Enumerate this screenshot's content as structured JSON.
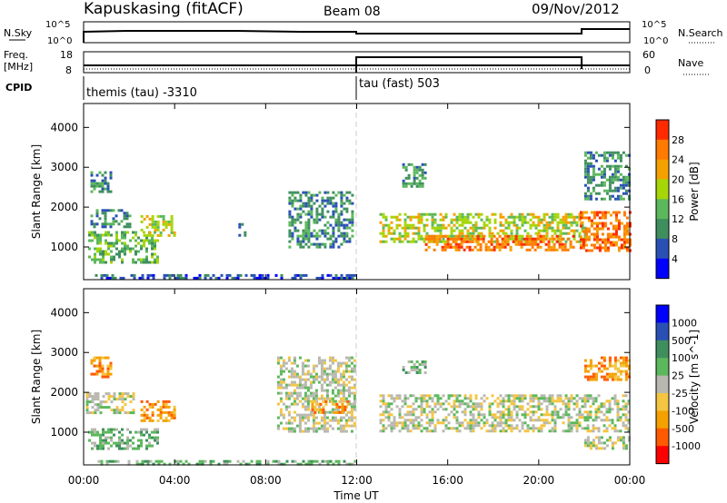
{
  "header": {
    "station": "Kapuskasing (fitACF)",
    "beam": "Beam 08",
    "date": "09/Nov/2012"
  },
  "strips": {
    "nsky_label": "N.Sky",
    "nsky_ticks": [
      "10^5",
      "10^0"
    ],
    "nsearch_label": "N.Search",
    "nsearch_ticks": [
      "10^5",
      "10^0"
    ],
    "freq_label_1": "Freq.",
    "freq_label_2": "[MHz]",
    "freq_ticks": [
      "18",
      "8"
    ],
    "nave_label": "Nave",
    "nave_ticks": [
      "60",
      "0"
    ],
    "cpid_label": "CPID",
    "cpid_segments": [
      "themis (tau) -3310",
      "tau (fast) 503"
    ],
    "cpid_change_time": "12:00"
  },
  "chart_data": [
    {
      "type": "heatmap",
      "title": "",
      "xlabel": "Time UT",
      "ylabel": "Slant Range [km]",
      "colorbar_label": "Power [dB]",
      "colorbar_ticks": [
        "28",
        "24",
        "20",
        "16",
        "12",
        "8",
        "4"
      ],
      "colors": [
        "#0000ff",
        "#2a50b5",
        "#3f8f5e",
        "#5cb85c",
        "#a6d608",
        "#f4a100",
        "#ff7a00",
        "#ff2a00"
      ],
      "x_ticks": [
        "00:00",
        "04:00",
        "08:00",
        "12:00",
        "16:00",
        "20:00",
        "00:00"
      ],
      "y_ticks": [
        "1000",
        "2000",
        "3000",
        "4000"
      ],
      "xlim": [
        0,
        24
      ],
      "ylim": [
        180,
        4600
      ],
      "regions": [
        {
          "t0": 0.2,
          "t1": 3.3,
          "r0": 600,
          "r1": 1400,
          "level": 3
        },
        {
          "t0": 0.3,
          "t1": 2.0,
          "r0": 1500,
          "r1": 1950,
          "level": 2
        },
        {
          "t0": 0.3,
          "t1": 1.2,
          "r0": 2400,
          "r1": 2900,
          "level": 2
        },
        {
          "t0": 2.5,
          "t1": 4.0,
          "r0": 1300,
          "r1": 1800,
          "level": 4
        },
        {
          "t0": 6.8,
          "t1": 7.1,
          "r0": 1300,
          "r1": 1600,
          "level": 2
        },
        {
          "t0": 9.0,
          "t1": 11.8,
          "r0": 1000,
          "r1": 2400,
          "level": 2
        },
        {
          "t0": 13.0,
          "t1": 22.0,
          "r0": 1100,
          "r1": 1850,
          "level": 4
        },
        {
          "t0": 15.0,
          "t1": 21.5,
          "r0": 900,
          "r1": 1300,
          "level": 6
        },
        {
          "t0": 21.8,
          "t1": 24.0,
          "r0": 900,
          "r1": 1900,
          "level": 6
        },
        {
          "t0": 14.0,
          "t1": 15.0,
          "r0": 2500,
          "r1": 3100,
          "level": 2
        },
        {
          "t0": 22.0,
          "t1": 24.0,
          "r0": 2200,
          "r1": 3400,
          "level": 2
        },
        {
          "t0": 0.5,
          "t1": 12.0,
          "r0": 200,
          "r1": 320,
          "level": 1
        }
      ]
    },
    {
      "type": "heatmap",
      "title": "",
      "xlabel": "Time UT",
      "ylabel": "Slant Range [km]",
      "colorbar_label": "Velocity [m s^-1]",
      "colorbar_ticks": [
        "1000",
        "500",
        "100",
        "25",
        "-25",
        "-100",
        "-500",
        "-1000"
      ],
      "colors": [
        "#ff0000",
        "#ff5a00",
        "#f4a100",
        "#f4c542",
        "#b8b8b0",
        "#5cb85c",
        "#3f8f5e",
        "#2a50b5",
        "#0000ff"
      ],
      "x_ticks": [
        "00:00",
        "04:00",
        "08:00",
        "12:00",
        "16:00",
        "20:00",
        "00:00"
      ],
      "y_ticks": [
        "1000",
        "2000",
        "3000",
        "4000"
      ],
      "xlim": [
        0,
        24
      ],
      "ylim": [
        180,
        4600
      ],
      "regions": [
        {
          "t0": 0.1,
          "t1": 2.2,
          "r0": 1500,
          "r1": 2000,
          "level": 4
        },
        {
          "t0": 0.2,
          "t1": 3.3,
          "r0": 600,
          "r1": 1100,
          "level": 5
        },
        {
          "t0": 2.5,
          "t1": 4.0,
          "r0": 1300,
          "r1": 1800,
          "level": 2
        },
        {
          "t0": 0.3,
          "t1": 1.2,
          "r0": 2400,
          "r1": 2900,
          "level": 2
        },
        {
          "t0": 8.5,
          "t1": 11.9,
          "r0": 1000,
          "r1": 2900,
          "level": 4
        },
        {
          "t0": 10.0,
          "t1": 11.6,
          "r0": 1500,
          "r1": 1800,
          "level": 2
        },
        {
          "t0": 13.0,
          "t1": 24.0,
          "r0": 1000,
          "r1": 1950,
          "level": 4
        },
        {
          "t0": 22.0,
          "t1": 24.0,
          "r0": 600,
          "r1": 900,
          "level": 4
        },
        {
          "t0": 14.0,
          "t1": 15.0,
          "r0": 2500,
          "r1": 2800,
          "level": 5
        },
        {
          "t0": 22.0,
          "t1": 24.0,
          "r0": 2300,
          "r1": 2900,
          "level": 2
        },
        {
          "t0": 0.5,
          "t1": 12.0,
          "r0": 200,
          "r1": 300,
          "level": 5
        }
      ]
    }
  ]
}
